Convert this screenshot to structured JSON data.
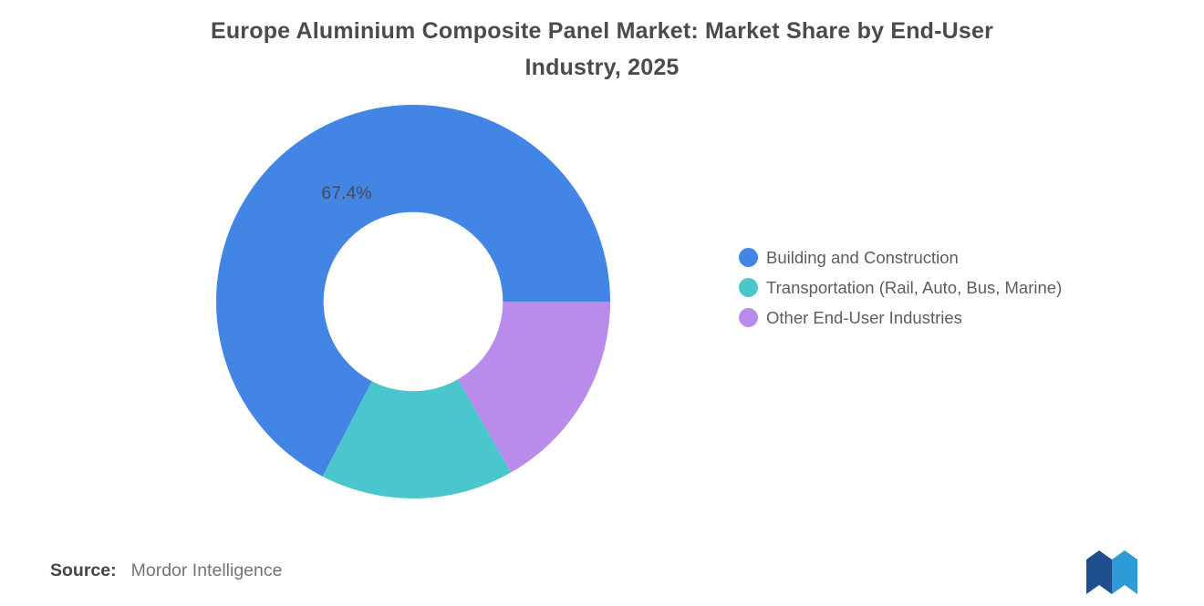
{
  "title_lines": [
    "Europe Aluminium Composite Panel Market: Market Share by End-User",
    "Industry, 2025"
  ],
  "chart_data": {
    "type": "pie",
    "subtype": "donut",
    "title": "Europe Aluminium Composite Panel Market: Market Share by End-User Industry, 2025",
    "categories": [
      "Building and Construction",
      "Transportation (Rail, Auto, Bus, Marine)",
      "Other End-User Industries"
    ],
    "values": [
      67.4,
      15.9,
      16.7
    ],
    "colors": [
      "#4285E4",
      "#4BC6CD",
      "#B98CEC"
    ],
    "slice_labels": [
      "67.4%",
      "",
      ""
    ],
    "unit": "%",
    "start_angle_deg": 90,
    "direction": "counterclockwise",
    "inner_radius_ratio": 0.455,
    "label_radius_ratio": 0.65,
    "legend_position": "right",
    "hole_color": "#ffffff"
  },
  "legend_note": "legend rendered from chart_data.categories and chart_data.colors",
  "source": {
    "label": "Source:",
    "value": "Mordor Intelligence"
  },
  "logo": {
    "name": "mordor-intelligence-logo",
    "color_dark": "#1F4E8C",
    "color_light": "#2E9BD6"
  }
}
